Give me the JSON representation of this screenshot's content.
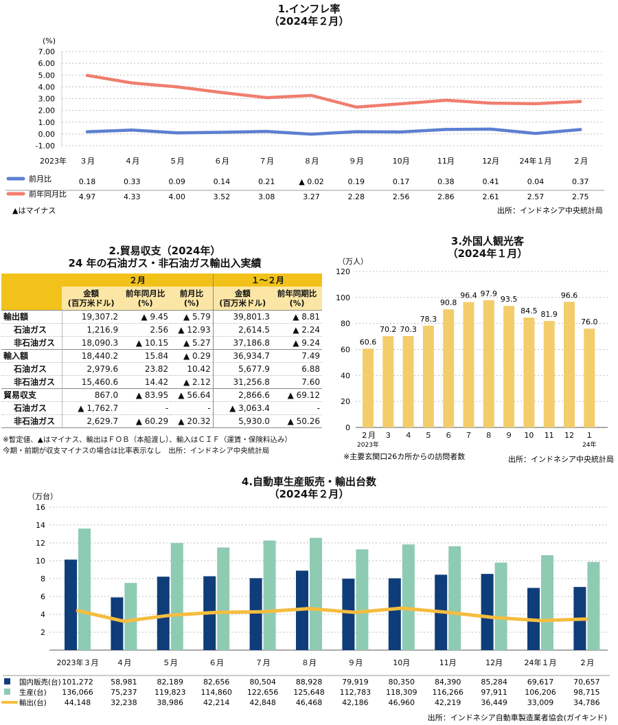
{
  "chart1": {
    "title": "1.インフレ率",
    "subtitle": "（2024年２月）",
    "unit": "(%)",
    "y_ticks": [
      "7.00",
      "6.00",
      "5.00",
      "4.00",
      "3.00",
      "2.00",
      "1.00",
      "0.00",
      "-1.00"
    ],
    "year_label": "2023年",
    "months": [
      "３月",
      "４月",
      "５月",
      "６月",
      "７月",
      "８月",
      "９月",
      "10月",
      "11月",
      "12月",
      "24年１月",
      "２月"
    ],
    "legend_text": "▲はマイナス",
    "source": "出所：インドネシア中央統計局",
    "colors": {
      "mom": "#5b7fd1",
      "yoy": "#f07e6e"
    }
  },
  "chart_data": [
    {
      "type": "line",
      "title": "1.インフレ率（2024年２月）",
      "x": [
        "2023年３月",
        "４月",
        "５月",
        "６月",
        "７月",
        "８月",
        "９月",
        "10月",
        "11月",
        "12月",
        "24年１月",
        "２月"
      ],
      "ylabel": "(%)",
      "ylim": [
        -1,
        7
      ],
      "series": [
        {
          "name": "前月比",
          "values": [
            0.18,
            0.33,
            0.09,
            0.14,
            0.21,
            -0.02,
            0.19,
            0.17,
            0.38,
            0.41,
            0.04,
            0.37
          ],
          "labels": [
            "0.18",
            "0.33",
            "0.09",
            "0.14",
            "0.21",
            "▲ 0.02",
            "0.19",
            "0.17",
            "0.38",
            "0.41",
            "0.04",
            "0.37"
          ]
        },
        {
          "name": "前年同月比",
          "values": [
            4.97,
            4.33,
            4.0,
            3.52,
            3.08,
            3.27,
            2.28,
            2.56,
            2.86,
            2.61,
            2.57,
            2.75
          ],
          "labels": [
            "4.97",
            "4.33",
            "4.00",
            "3.52",
            "3.08",
            "3.27",
            "2.28",
            "2.56",
            "2.86",
            "2.61",
            "2.57",
            "2.75"
          ]
        }
      ]
    },
    {
      "type": "table",
      "title": "2.貿易収支（2024年）",
      "subtitle": "24 年の石油ガス・非石油ガス輸出入実績",
      "group_headers": [
        "２月",
        "１～２月"
      ],
      "columns": [
        "金額\n(百万米ドル)",
        "前年同月比\n(%)",
        "前月比\n(%)",
        "金額\n(百万米ドル)",
        "前年同期比\n(%)"
      ],
      "rows": [
        {
          "label": "輸出額",
          "level": 0,
          "cells": [
            "19,307.2",
            "▲ 9.45",
            "▲ 5.79",
            "39,801.3",
            "▲ 8.81"
          ]
        },
        {
          "label": "石油ガス",
          "level": 1,
          "cells": [
            "1,216.9",
            "2.56",
            "▲ 12.93",
            "2,614.5",
            "▲ 2.24"
          ]
        },
        {
          "label": "非石油ガス",
          "level": 1,
          "cells": [
            "18,090.3",
            "▲ 10.15",
            "▲ 5.27",
            "37,186.8",
            "▲ 9.24"
          ]
        },
        {
          "label": "輸入額",
          "level": 0,
          "cells": [
            "18,440.2",
            "15.84",
            "▲ 0.29",
            "36,934.7",
            "7.49"
          ]
        },
        {
          "label": "石油ガス",
          "level": 1,
          "cells": [
            "2,979.6",
            "23.82",
            "10.42",
            "5,677.9",
            "6.88"
          ]
        },
        {
          "label": "非石油ガス",
          "level": 1,
          "cells": [
            "15,460.6",
            "14.42",
            "▲ 2.12",
            "31,256.8",
            "7.60"
          ]
        },
        {
          "label": "貿易収支",
          "level": 0,
          "cells": [
            "867.0",
            "▲ 83.95",
            "▲ 56.64",
            "2,866.6",
            "▲ 69.12"
          ]
        },
        {
          "label": "石油ガス",
          "level": 1,
          "cells": [
            "▲ 1,762.7",
            "-",
            "-",
            "▲ 3,063.4",
            "-"
          ]
        },
        {
          "label": "非石油ガス",
          "level": 1,
          "cells": [
            "2,629.7",
            "▲ 60.29",
            "▲ 20.32",
            "5,930.0",
            "▲ 50.26"
          ]
        }
      ],
      "notes": [
        "※暫定値、▲はマイナス、輸出はＦＯＢ（本船渡し）、輸入はＣＩＦ（運賃・保険料込み）",
        "今期・前期が収支マイナスの場合は比率表示なし　出所：インドネシア中央統計局"
      ]
    },
    {
      "type": "bar",
      "title": "3.外国人観光客（2024年１月）",
      "categories": [
        "２月",
        "３",
        "４",
        "５",
        "６",
        "７",
        "８",
        "９",
        "10",
        "11",
        "12",
        "１"
      ],
      "category_sublabels": [
        "2023年",
        "",
        "",
        "",
        "",
        "",
        "",
        "",
        "",
        "",
        "",
        "24年"
      ],
      "values": [
        60.6,
        70.2,
        70.3,
        78.3,
        90.8,
        96.4,
        97.9,
        93.5,
        84.5,
        81.9,
        96.6,
        76.0
      ],
      "value_labels": [
        "60.6",
        "70.2",
        "70.3",
        "78.3",
        "90.8",
        "96.4",
        "97.9",
        "93.5",
        "84.5",
        "81.9",
        "96.6",
        "76.0"
      ],
      "ylabel": "（万人）",
      "ylim": [
        0,
        120
      ],
      "y_ticks": [
        "120",
        "100",
        "80",
        "60",
        "40",
        "20",
        "0"
      ],
      "color": "#f2cd6a",
      "note": "※主要玄関口26カ所からの訪問者数",
      "source": "出所：インドネシア中央統計局"
    },
    {
      "type": "bar",
      "title": "4.自動車生産販売・輸出台数（2024年２月）",
      "categories": [
        "2023年３月",
        "４月",
        "５月",
        "６月",
        "７月",
        "８月",
        "９月",
        "10月",
        "11月",
        "12月",
        "24年１月",
        "２月"
      ],
      "ylabel": "（万台）",
      "ylim": [
        0,
        16
      ],
      "y_ticks": [
        "16",
        "14",
        "12",
        "10",
        "8",
        "6",
        "4",
        "2"
      ],
      "series": [
        {
          "name": "国内販売(台)",
          "kind": "bar",
          "color": "#0f3d7a",
          "values": [
            101272,
            58981,
            82189,
            82656,
            80504,
            88928,
            79919,
            80350,
            84390,
            85284,
            69617,
            70657
          ],
          "labels": [
            "101,272",
            "58,981",
            "82,189",
            "82,656",
            "80,504",
            "88,928",
            "79,919",
            "80,350",
            "84,390",
            "85,284",
            "69,617",
            "70,657"
          ]
        },
        {
          "name": "生産(台)",
          "kind": "bar",
          "color": "#8ecbb3",
          "values": [
            136066,
            75237,
            119823,
            114860,
            122656,
            125648,
            112783,
            118309,
            116266,
            97911,
            106206,
            98715
          ],
          "labels": [
            "136,066",
            "75,237",
            "119,823",
            "114,860",
            "122,656",
            "125,648",
            "112,783",
            "118,309",
            "116,266",
            "97,911",
            "106,206",
            "98,715"
          ]
        },
        {
          "name": "輸出(台)",
          "kind": "line",
          "color": "#f5bd3f",
          "values": [
            44148,
            32238,
            38986,
            42214,
            42848,
            46468,
            42186,
            46960,
            42219,
            36449,
            33009,
            34786
          ],
          "labels": [
            "44,148",
            "32,238",
            "38,986",
            "42,214",
            "42,848",
            "46,468",
            "42,186",
            "46,960",
            "42,219",
            "36,449",
            "33,009",
            "34,786"
          ]
        }
      ],
      "source": "出所：インドネシア自動車製造業者協会(ガイキンド)"
    }
  ]
}
